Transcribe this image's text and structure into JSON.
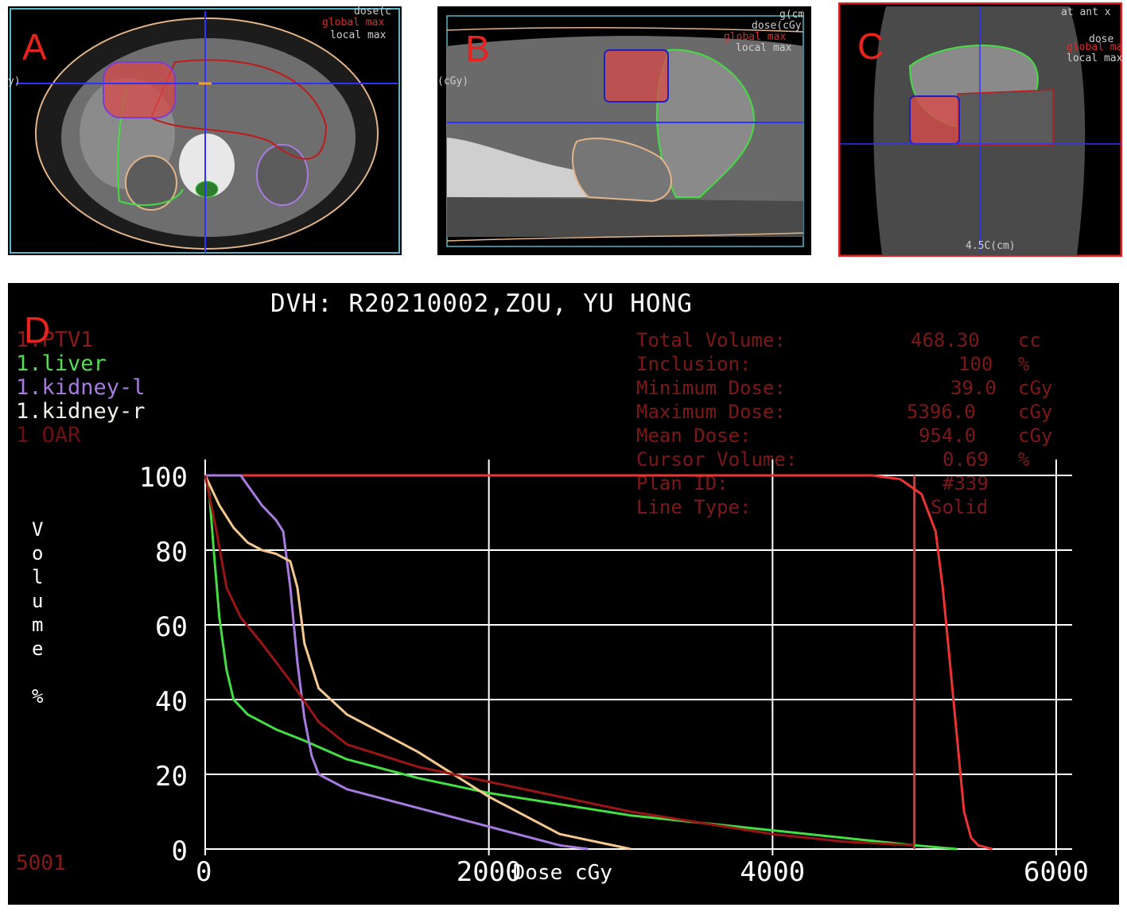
{
  "panels": {
    "a": {
      "letter": "A",
      "overlays": [
        "dose(c",
        "global max",
        "local max"
      ],
      "axis_mark": "y)"
    },
    "b": {
      "letter": "B",
      "overlays": [
        "g(cm",
        "dose(cGy",
        "global max",
        "local max"
      ],
      "axis_mark": "(cGy)"
    },
    "c": {
      "letter": "C",
      "overlays": [
        "at ant x",
        "dose",
        "global max",
        "local max"
      ],
      "bottom_text": "4.5C(cm)"
    },
    "d": {
      "letter": "D",
      "footer_code": "5001"
    }
  },
  "dvh": {
    "title": "DVH: R20210002,ZOU, YU HONG",
    "legend": [
      {
        "label": "1.PTV1",
        "color": "#8b1a1a"
      },
      {
        "label": "1.liver",
        "color": "#55dd55"
      },
      {
        "label": "1.kidney-l",
        "color": "#a77be0"
      },
      {
        "label": "1.kidney-r",
        "color": "#f2f2e8"
      },
      {
        "label": "1 OAR",
        "color": "#6e1010"
      }
    ],
    "info": [
      {
        "label": "Total Volume:",
        "value": "468.30",
        "unit": "cc"
      },
      {
        "label": "Inclusion:",
        "value": "100",
        "unit": "%"
      },
      {
        "label": "Minimum Dose:",
        "value": "39.0",
        "unit": "cGy"
      },
      {
        "label": "Maximum Dose:",
        "value": "5396.0",
        "unit": "cGy"
      },
      {
        "label": "Mean Dose:",
        "value": "954.0",
        "unit": "cGy"
      },
      {
        "label": "Cursor Volume:",
        "value": "0.69",
        "unit": "%"
      },
      {
        "label": "Plan ID:",
        "value": "#339",
        "unit": ""
      },
      {
        "label": "Line Type:",
        "value": "Solid",
        "unit": ""
      }
    ],
    "ylabel_chars": [
      "V",
      "o",
      "l",
      "u",
      "m",
      "e",
      "%"
    ],
    "xlabel": "Dose cGy"
  },
  "chart_data": {
    "type": "line",
    "title": "DVH: R20210002,ZOU, YU HONG",
    "xlabel": "Dose cGy",
    "ylabel": "Volume %",
    "xlim": [
      0,
      6000
    ],
    "ylim": [
      0,
      100
    ],
    "xticks": [
      0,
      2000,
      4000,
      6000
    ],
    "yticks": [
      0,
      20,
      40,
      60,
      80,
      100
    ],
    "grid": true,
    "cursor_dose": 5000,
    "series": [
      {
        "name": "PTV1",
        "color": "#ee3333",
        "x": [
          0,
          4700,
          4900,
          5050,
          5150,
          5200,
          5250,
          5300,
          5350,
          5400,
          5450,
          5550
        ],
        "y": [
          100,
          100,
          99,
          95,
          85,
          70,
          50,
          30,
          10,
          3,
          1,
          0
        ]
      },
      {
        "name": "liver",
        "color": "#44dd44",
        "x": [
          0,
          30,
          60,
          100,
          150,
          200,
          300,
          500,
          700,
          1000,
          1500,
          2000,
          2500,
          3000,
          3500,
          4000,
          4500,
          5000,
          5300
        ],
        "y": [
          100,
          95,
          80,
          62,
          48,
          40,
          36,
          32,
          29,
          24,
          19,
          15,
          12,
          9,
          7,
          5,
          3,
          1,
          0
        ]
      },
      {
        "name": "kidney-l",
        "color": "#a77be0",
        "x": [
          0,
          250,
          400,
          500,
          550,
          600,
          650,
          700,
          750,
          800,
          1000,
          1500,
          2000,
          2500,
          2700
        ],
        "y": [
          100,
          100,
          92,
          88,
          85,
          70,
          50,
          35,
          25,
          20,
          16,
          11,
          6,
          1,
          0
        ]
      },
      {
        "name": "kidney-r",
        "color": "#f5c890",
        "x": [
          0,
          100,
          200,
          300,
          400,
          500,
          600,
          650,
          700,
          800,
          1000,
          1500,
          2000,
          2500,
          3000
        ],
        "y": [
          100,
          92,
          86,
          82,
          80,
          79,
          77,
          70,
          55,
          43,
          36,
          26,
          14,
          4,
          0
        ]
      },
      {
        "name": "OAR",
        "color": "#9a1515",
        "x": [
          0,
          80,
          150,
          250,
          400,
          600,
          800,
          1000,
          1500,
          2000,
          2500,
          3000,
          3500,
          4000,
          4500,
          5000
        ],
        "y": [
          100,
          85,
          70,
          62,
          55,
          45,
          34,
          28,
          22,
          18,
          14,
          10,
          7,
          4,
          2,
          1
        ]
      }
    ]
  }
}
